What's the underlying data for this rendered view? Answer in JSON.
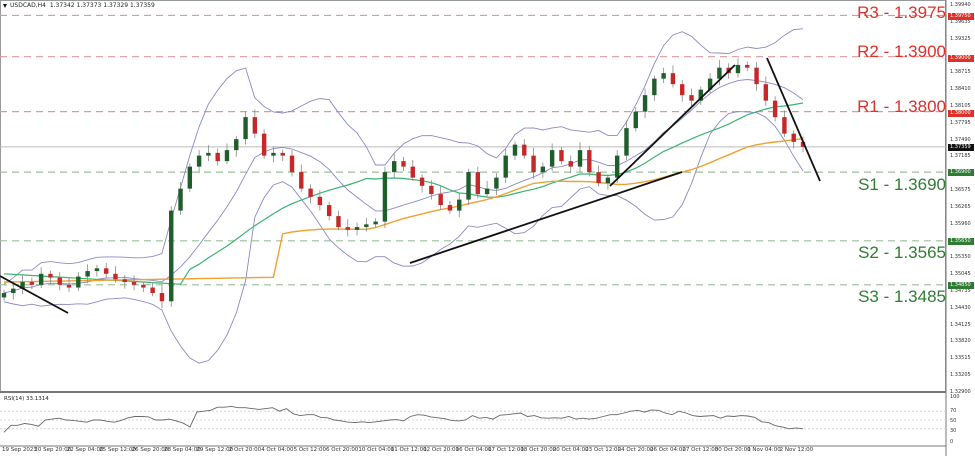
{
  "header": {
    "symbol": "USDCAD,H4",
    "ohlc": "1.37342 1.37373 1.37329 1.37359"
  },
  "colors": {
    "resistance": "#e0302a",
    "resistance_line": "#d99a9a",
    "support": "#2e7d32",
    "support_line": "#9bbf9b",
    "bull_candle": "#1e5e2a",
    "bear_candle": "#c62828",
    "wick": "#888888",
    "bollinger": "#8a8ac4",
    "ma_green": "#3cb371",
    "ma_orange": "#f0a030",
    "trendline": "#111111",
    "current_price_tag": "#111111",
    "rsi_line": "#666666"
  },
  "levels": [
    {
      "name": "R3",
      "label": "R3 - 1.3975",
      "price": 1.3975,
      "tag": "1.39750",
      "type": "resistance"
    },
    {
      "name": "R2",
      "label": "R2 - 1.3900",
      "price": 1.39,
      "tag": "1.39000",
      "type": "resistance"
    },
    {
      "name": "R1",
      "label": "R1 - 1.3800",
      "price": 1.38,
      "tag": "1.38000",
      "type": "resistance"
    },
    {
      "name": "S1",
      "label": "S1 - 1.3690",
      "price": 1.369,
      "tag": "1.36900",
      "type": "support"
    },
    {
      "name": "S2",
      "label": "S2 - 1.3565",
      "price": 1.3565,
      "tag": "1.35650",
      "type": "support"
    },
    {
      "name": "S3",
      "label": "S3 - 1.3485",
      "price": 1.3485,
      "tag": "1.34850",
      "type": "support"
    }
  ],
  "current_price": {
    "value": 1.37359,
    "tag": "1.37359"
  },
  "price_axis": [
    "1.39940",
    "1.39635",
    "1.39325",
    "1.38715",
    "1.38410",
    "1.38105",
    "1.37795",
    "1.37490",
    "1.37185",
    "1.36575",
    "1.36265",
    "1.35960",
    "1.35350",
    "1.35045",
    "1.34735",
    "1.34430",
    "1.34125",
    "1.33820",
    "1.33515",
    "1.33205",
    "1.32900"
  ],
  "time_axis": [
    "19 Sep 2023",
    "20 Sep 20:00",
    "22 Sep 04:00",
    "25 Sep 12:00",
    "26 Sep 20:00",
    "28 Sep 04:00",
    "29 Sep 12:00",
    "2 Oct 20:00",
    "4 Oct 04:00",
    "5 Oct 12:00",
    "6 Oct 20:00",
    "10 Oct 04:00",
    "11 Oct 12:00",
    "12 Oct 20:00",
    "16 Oct 04:00",
    "17 Oct 12:00",
    "18 Oct 20:00",
    "20 Oct 04:00",
    "23 Oct 12:00",
    "24 Oct 20:00",
    "26 Oct 04:00",
    "27 Oct 12:00",
    "30 Oct 20:00",
    "1 Nov 04:00",
    "2 Nov 12:00"
  ],
  "rsi": {
    "title": "RSI(14) 33.1314",
    "axis": [
      "100",
      "70",
      "50",
      "30",
      "0"
    ],
    "levels": [
      70,
      50,
      30
    ],
    "values": [
      22,
      38,
      38,
      42,
      40,
      36,
      50,
      52,
      54,
      50,
      49,
      47,
      45,
      50,
      50,
      47,
      45,
      49,
      55,
      58,
      58,
      57,
      50,
      50,
      52,
      48,
      43,
      34,
      68,
      70,
      72,
      79,
      79,
      81,
      78,
      78,
      76,
      74,
      76,
      78,
      70,
      76,
      64,
      60,
      62,
      62,
      56,
      55,
      50,
      48,
      45,
      44,
      46,
      44,
      46,
      48,
      50,
      51,
      48,
      58,
      62,
      61,
      57,
      55,
      53,
      49,
      48,
      50,
      60,
      54,
      56,
      52,
      61,
      62,
      64,
      66,
      58,
      60,
      55,
      54,
      55,
      54,
      58,
      52,
      54,
      52,
      54,
      58,
      62,
      62,
      66,
      70,
      72,
      68,
      73,
      72,
      66,
      62,
      70,
      66,
      60,
      58,
      59,
      60,
      54,
      59,
      58,
      60,
      59,
      56,
      46,
      44,
      37,
      34,
      30,
      32,
      30
    ]
  },
  "chart_data": {
    "type": "candlestick",
    "title": "USDCAD,H4",
    "xlabel": "",
    "ylabel": "",
    "ylim": [
      1.329,
      1.3994
    ],
    "grid": false,
    "x_labels": [
      "19 Sep 2023",
      "20 Sep 20:00",
      "22 Sep 04:00",
      "25 Sep 12:00",
      "26 Sep 20:00",
      "28 Sep 04:00",
      "29 Sep 12:00",
      "2 Oct 20:00",
      "4 Oct 04:00",
      "5 Oct 12:00",
      "6 Oct 20:00",
      "10 Oct 04:00",
      "11 Oct 12:00",
      "12 Oct 20:00",
      "16 Oct 04:00",
      "17 Oct 12:00",
      "18 Oct 20:00",
      "20 Oct 04:00",
      "23 Oct 12:00",
      "24 Oct 20:00",
      "26 Oct 04:00",
      "27 Oct 12:00",
      "30 Oct 20:00",
      "1 Nov 04:00",
      "2 Nov 12:00"
    ],
    "close_approx": [
      1.347,
      1.3478,
      1.349,
      1.3485,
      1.3505,
      1.3498,
      1.3485,
      1.348,
      1.35,
      1.351,
      1.3515,
      1.3505,
      1.3495,
      1.349,
      1.3485,
      1.348,
      1.347,
      1.3455,
      1.362,
      1.366,
      1.37,
      1.372,
      1.3725,
      1.371,
      1.373,
      1.375,
      1.379,
      1.376,
      1.372,
      1.3725,
      1.372,
      1.369,
      1.366,
      1.3645,
      1.363,
      1.361,
      1.359,
      1.3585,
      1.359,
      1.3595,
      1.36,
      1.369,
      1.371,
      1.37,
      1.368,
      1.3665,
      1.365,
      1.363,
      1.362,
      1.364,
      1.369,
      1.365,
      1.366,
      1.368,
      1.372,
      1.374,
      1.372,
      1.369,
      1.37,
      1.373,
      1.371,
      1.37,
      1.373,
      1.369,
      1.367,
      1.368,
      1.372,
      1.377,
      1.38,
      1.383,
      1.386,
      1.387,
      1.385,
      1.383,
      1.382,
      1.384,
      1.386,
      1.388,
      1.387,
      1.3885,
      1.388,
      1.385,
      1.382,
      1.379,
      1.376,
      1.3745,
      1.3736
    ],
    "support_resistance": [
      {
        "label": "R3",
        "value": 1.3975
      },
      {
        "label": "R2",
        "value": 1.39
      },
      {
        "label": "R1",
        "value": 1.38
      },
      {
        "label": "S1",
        "value": 1.369
      },
      {
        "label": "S2",
        "value": 1.3565
      },
      {
        "label": "S3",
        "value": 1.3485
      }
    ],
    "current_price": 1.37359,
    "indicators": [
      "Bollinger Bands",
      "Moving Average (green)",
      "Moving Average (orange)",
      "RSI(14) 33.1314"
    ],
    "trendlines": [
      {
        "from": [
          0,
          1.3498
        ],
        "to": [
          68,
          1.3475
        ],
        "note": "early downtrend line"
      },
      {
        "from": [
          410,
          1.359
        ],
        "to": [
          682,
          1.369
        ],
        "note": "ascending support"
      },
      {
        "from": [
          610,
          1.3665
        ],
        "to": [
          735,
          1.3865
        ],
        "note": "steep uptrend"
      },
      {
        "from": [
          767,
          1.389
        ],
        "to": [
          818,
          1.368
        ],
        "note": "steep downtrend"
      }
    ]
  }
}
